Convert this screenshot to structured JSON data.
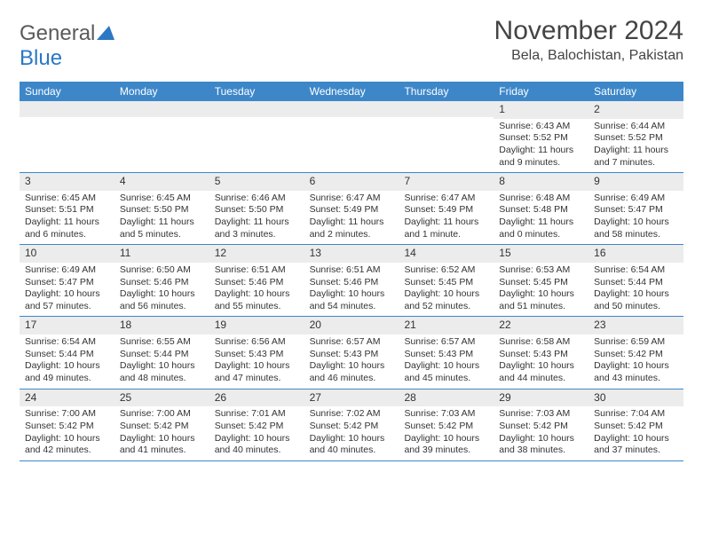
{
  "brand": {
    "part1": "General",
    "part2": "Blue"
  },
  "title": "November 2024",
  "location": "Bela, Balochistan, Pakistan",
  "colors": {
    "header_bg": "#3d87c9",
    "header_text": "#ffffff",
    "daynum_bg": "#ececec",
    "border": "#3d87c9",
    "text": "#333333",
    "logo_gray": "#5a5a5a",
    "logo_blue": "#2b78c4"
  },
  "day_names": [
    "Sunday",
    "Monday",
    "Tuesday",
    "Wednesday",
    "Thursday",
    "Friday",
    "Saturday"
  ],
  "weeks": [
    [
      {
        "n": "",
        "sr": "",
        "ss": "",
        "dl": ""
      },
      {
        "n": "",
        "sr": "",
        "ss": "",
        "dl": ""
      },
      {
        "n": "",
        "sr": "",
        "ss": "",
        "dl": ""
      },
      {
        "n": "",
        "sr": "",
        "ss": "",
        "dl": ""
      },
      {
        "n": "",
        "sr": "",
        "ss": "",
        "dl": ""
      },
      {
        "n": "1",
        "sr": "Sunrise: 6:43 AM",
        "ss": "Sunset: 5:52 PM",
        "dl": "Daylight: 11 hours and 9 minutes."
      },
      {
        "n": "2",
        "sr": "Sunrise: 6:44 AM",
        "ss": "Sunset: 5:52 PM",
        "dl": "Daylight: 11 hours and 7 minutes."
      }
    ],
    [
      {
        "n": "3",
        "sr": "Sunrise: 6:45 AM",
        "ss": "Sunset: 5:51 PM",
        "dl": "Daylight: 11 hours and 6 minutes."
      },
      {
        "n": "4",
        "sr": "Sunrise: 6:45 AM",
        "ss": "Sunset: 5:50 PM",
        "dl": "Daylight: 11 hours and 5 minutes."
      },
      {
        "n": "5",
        "sr": "Sunrise: 6:46 AM",
        "ss": "Sunset: 5:50 PM",
        "dl": "Daylight: 11 hours and 3 minutes."
      },
      {
        "n": "6",
        "sr": "Sunrise: 6:47 AM",
        "ss": "Sunset: 5:49 PM",
        "dl": "Daylight: 11 hours and 2 minutes."
      },
      {
        "n": "7",
        "sr": "Sunrise: 6:47 AM",
        "ss": "Sunset: 5:49 PM",
        "dl": "Daylight: 11 hours and 1 minute."
      },
      {
        "n": "8",
        "sr": "Sunrise: 6:48 AM",
        "ss": "Sunset: 5:48 PM",
        "dl": "Daylight: 11 hours and 0 minutes."
      },
      {
        "n": "9",
        "sr": "Sunrise: 6:49 AM",
        "ss": "Sunset: 5:47 PM",
        "dl": "Daylight: 10 hours and 58 minutes."
      }
    ],
    [
      {
        "n": "10",
        "sr": "Sunrise: 6:49 AM",
        "ss": "Sunset: 5:47 PM",
        "dl": "Daylight: 10 hours and 57 minutes."
      },
      {
        "n": "11",
        "sr": "Sunrise: 6:50 AM",
        "ss": "Sunset: 5:46 PM",
        "dl": "Daylight: 10 hours and 56 minutes."
      },
      {
        "n": "12",
        "sr": "Sunrise: 6:51 AM",
        "ss": "Sunset: 5:46 PM",
        "dl": "Daylight: 10 hours and 55 minutes."
      },
      {
        "n": "13",
        "sr": "Sunrise: 6:51 AM",
        "ss": "Sunset: 5:46 PM",
        "dl": "Daylight: 10 hours and 54 minutes."
      },
      {
        "n": "14",
        "sr": "Sunrise: 6:52 AM",
        "ss": "Sunset: 5:45 PM",
        "dl": "Daylight: 10 hours and 52 minutes."
      },
      {
        "n": "15",
        "sr": "Sunrise: 6:53 AM",
        "ss": "Sunset: 5:45 PM",
        "dl": "Daylight: 10 hours and 51 minutes."
      },
      {
        "n": "16",
        "sr": "Sunrise: 6:54 AM",
        "ss": "Sunset: 5:44 PM",
        "dl": "Daylight: 10 hours and 50 minutes."
      }
    ],
    [
      {
        "n": "17",
        "sr": "Sunrise: 6:54 AM",
        "ss": "Sunset: 5:44 PM",
        "dl": "Daylight: 10 hours and 49 minutes."
      },
      {
        "n": "18",
        "sr": "Sunrise: 6:55 AM",
        "ss": "Sunset: 5:44 PM",
        "dl": "Daylight: 10 hours and 48 minutes."
      },
      {
        "n": "19",
        "sr": "Sunrise: 6:56 AM",
        "ss": "Sunset: 5:43 PM",
        "dl": "Daylight: 10 hours and 47 minutes."
      },
      {
        "n": "20",
        "sr": "Sunrise: 6:57 AM",
        "ss": "Sunset: 5:43 PM",
        "dl": "Daylight: 10 hours and 46 minutes."
      },
      {
        "n": "21",
        "sr": "Sunrise: 6:57 AM",
        "ss": "Sunset: 5:43 PM",
        "dl": "Daylight: 10 hours and 45 minutes."
      },
      {
        "n": "22",
        "sr": "Sunrise: 6:58 AM",
        "ss": "Sunset: 5:43 PM",
        "dl": "Daylight: 10 hours and 44 minutes."
      },
      {
        "n": "23",
        "sr": "Sunrise: 6:59 AM",
        "ss": "Sunset: 5:42 PM",
        "dl": "Daylight: 10 hours and 43 minutes."
      }
    ],
    [
      {
        "n": "24",
        "sr": "Sunrise: 7:00 AM",
        "ss": "Sunset: 5:42 PM",
        "dl": "Daylight: 10 hours and 42 minutes."
      },
      {
        "n": "25",
        "sr": "Sunrise: 7:00 AM",
        "ss": "Sunset: 5:42 PM",
        "dl": "Daylight: 10 hours and 41 minutes."
      },
      {
        "n": "26",
        "sr": "Sunrise: 7:01 AM",
        "ss": "Sunset: 5:42 PM",
        "dl": "Daylight: 10 hours and 40 minutes."
      },
      {
        "n": "27",
        "sr": "Sunrise: 7:02 AM",
        "ss": "Sunset: 5:42 PM",
        "dl": "Daylight: 10 hours and 40 minutes."
      },
      {
        "n": "28",
        "sr": "Sunrise: 7:03 AM",
        "ss": "Sunset: 5:42 PM",
        "dl": "Daylight: 10 hours and 39 minutes."
      },
      {
        "n": "29",
        "sr": "Sunrise: 7:03 AM",
        "ss": "Sunset: 5:42 PM",
        "dl": "Daylight: 10 hours and 38 minutes."
      },
      {
        "n": "30",
        "sr": "Sunrise: 7:04 AM",
        "ss": "Sunset: 5:42 PM",
        "dl": "Daylight: 10 hours and 37 minutes."
      }
    ]
  ]
}
